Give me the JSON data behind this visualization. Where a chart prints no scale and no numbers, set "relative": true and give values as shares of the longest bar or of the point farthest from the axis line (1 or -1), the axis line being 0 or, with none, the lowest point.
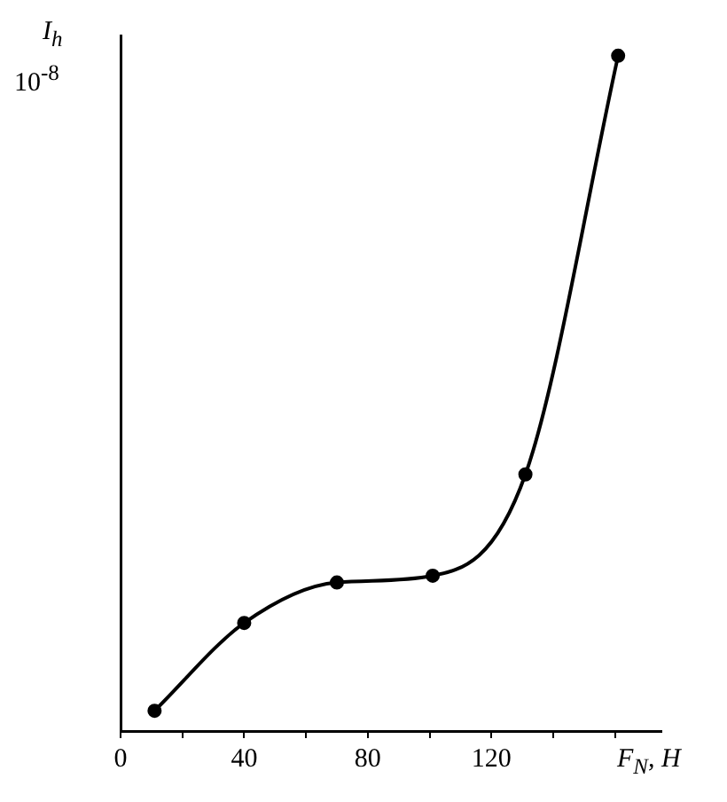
{
  "chart_data": {
    "type": "line",
    "ylabel": "I$_{h}$",
    "xlabel": "F$_{N}$, H",
    "annotations": [
      "10$^{-8}$"
    ],
    "relative": true,
    "marker": "circle",
    "line_style": "solid",
    "grid": false,
    "legend": false,
    "x": [
      11,
      40,
      70,
      101,
      131,
      161
    ],
    "series": [
      {
        "color": "#000000",
        "values": [
          0.03,
          0.16,
          0.22,
          0.23,
          0.38,
          1
        ]
      }
    ],
    "xlim": [
      0,
      175
    ],
    "xticks": [
      0,
      {
        "value": 20,
        "label": null
      },
      40,
      {
        "value": 60,
        "label": null
      },
      80,
      {
        "value": 100,
        "label": null
      },
      120,
      {
        "value": 140,
        "label": null
      },
      {
        "value": 160,
        "label": null
      }
    ]
  }
}
